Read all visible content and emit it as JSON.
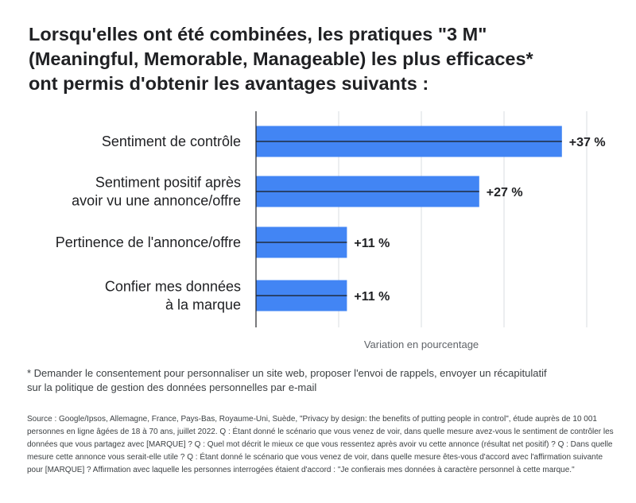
{
  "title": "Lorsqu'elles ont été combinées, les pratiques \"3 M\"\n(Meaningful, Memorable, Manageable) les plus efficaces*\nont permis d'obtenir les avantages suivants :",
  "footnote": "* Demander le consentement pour personnaliser un site web, proposer l'envoi de rappels, envoyer un récapitulatif\n  sur la politique de gestion des données personnelles par e-mail",
  "source": "Source : Google/Ipsos, Allemagne, France, Pays-Bas, Royaume-Uni, Suède, \"Privacy by design: the benefits of putting people in control\", étude auprès de 10 001 personnes en ligne âgées de 18 à 70 ans, juillet 2022. Q : Étant donné le scénario que vous venez de voir, dans quelle mesure avez-vous le sentiment de contrôler les données que vous partagez avec [MARQUE] ? Q : Quel mot décrit le mieux ce que vous ressentez après avoir vu cette annonce (résultat net positif) ? Q : Dans quelle mesure cette annonce vous serait-elle utile ? Q : Étant donné le scénario que vous venez de voir, dans quelle mesure êtes-vous d'accord avec l'affirmation suivante pour [MARQUE] ? Affirmation avec laquelle les personnes interrogées étaient d'accord : \"Je confierais mes données à caractère personnel à cette marque.\"",
  "chart_data": {
    "type": "bar",
    "orientation": "horizontal",
    "categories": [
      [
        "Sentiment de contrôle"
      ],
      [
        "Sentiment positif après",
        "avoir vu une annonce/offre"
      ],
      [
        "Pertinence de l'annonce/offre"
      ],
      [
        "Confier mes données",
        "à la marque"
      ]
    ],
    "values": [
      37,
      27,
      11,
      11
    ],
    "value_labels": [
      "+37 %",
      "+27 %",
      "+11 %",
      "+11 %"
    ],
    "xlabel": "Variation en pourcentage",
    "xlim": [
      0,
      40
    ],
    "gridlines": [
      10,
      20,
      30,
      40
    ],
    "bar_color": "#4285f4"
  }
}
